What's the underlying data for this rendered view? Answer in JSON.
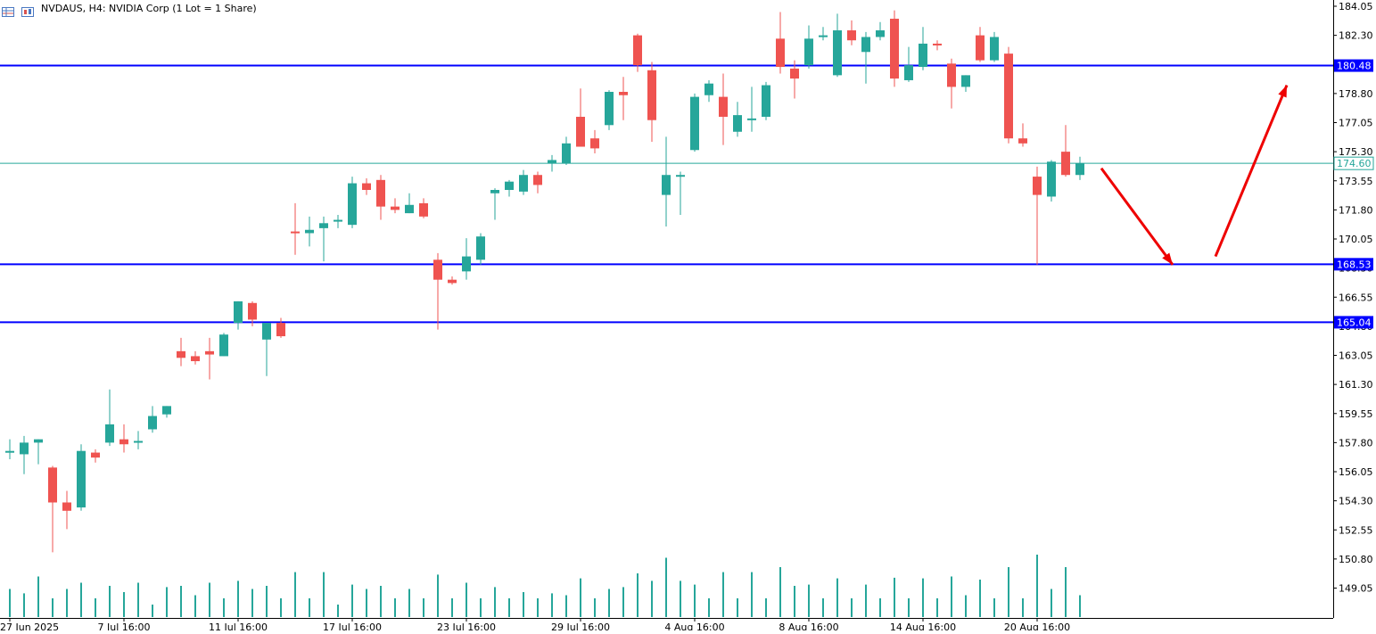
{
  "title": "NVDAUS, H4:  NVIDIA Corp (1 Lot = 1 Share)",
  "colors": {
    "bull": "#26a69a",
    "bear": "#ef5350",
    "level_line": "#0000ff",
    "price_line": "#26a69a",
    "arrow": "#ee0000",
    "axis": "#000000",
    "tag_bg": "#0000ff",
    "tag_text": "#ffffff"
  },
  "chart_data": {
    "type": "candlestick",
    "symbol": "NVDAUS",
    "timeframe": "H4",
    "ylim": [
      148.0,
      184.5
    ],
    "y_ticks": [
      "184.05",
      "182.30",
      "180.55",
      "178.80",
      "177.05",
      "175.30",
      "173.55",
      "171.80",
      "170.05",
      "168.30",
      "166.55",
      "164.80",
      "163.05",
      "161.30",
      "159.55",
      "157.80",
      "156.05",
      "154.30",
      "152.55",
      "150.80",
      "149.05"
    ],
    "x_ticks": [
      "27 Jun 2025",
      "7 Jul 16:00",
      "11 Jul 16:00",
      "17 Jul 16:00",
      "23 Jul 16:00",
      "29 Jul 16:00",
      "4 Aug 16:00",
      "8 Aug 16:00",
      "14 Aug 16:00",
      "20 Aug 16:00"
    ],
    "x_tick_bar_index": [
      0,
      8,
      16,
      24,
      32,
      40,
      48,
      56,
      64,
      72
    ],
    "candles": [
      {
        "o": 157.2,
        "h": 158.0,
        "l": 156.8,
        "c": 157.3
      },
      {
        "o": 157.1,
        "h": 158.2,
        "l": 155.9,
        "c": 157.8
      },
      {
        "o": 157.8,
        "h": 158.0,
        "l": 156.5,
        "c": 158.0
      },
      {
        "o": 156.3,
        "h": 156.4,
        "l": 151.2,
        "c": 154.2
      },
      {
        "o": 154.2,
        "h": 154.9,
        "l": 152.6,
        "c": 153.7
      },
      {
        "o": 153.9,
        "h": 157.7,
        "l": 153.7,
        "c": 157.3
      },
      {
        "o": 157.2,
        "h": 157.4,
        "l": 156.6,
        "c": 156.9
      },
      {
        "o": 157.8,
        "h": 161.0,
        "l": 157.6,
        "c": 158.9
      },
      {
        "o": 158.0,
        "h": 158.9,
        "l": 157.2,
        "c": 157.7
      },
      {
        "o": 157.8,
        "h": 158.5,
        "l": 157.4,
        "c": 157.9
      },
      {
        "o": 158.6,
        "h": 160.0,
        "l": 158.4,
        "c": 159.4
      },
      {
        "o": 159.5,
        "h": 160.0,
        "l": 159.3,
        "c": 160.0
      },
      {
        "o": 163.3,
        "h": 164.1,
        "l": 162.4,
        "c": 162.9
      },
      {
        "o": 163.0,
        "h": 163.3,
        "l": 162.5,
        "c": 162.7
      },
      {
        "o": 163.3,
        "h": 164.1,
        "l": 161.6,
        "c": 163.1
      },
      {
        "o": 163.0,
        "h": 164.4,
        "l": 163.0,
        "c": 164.3
      },
      {
        "o": 165.0,
        "h": 166.3,
        "l": 164.6,
        "c": 166.3
      },
      {
        "o": 166.2,
        "h": 166.3,
        "l": 164.8,
        "c": 165.2
      },
      {
        "o": 164.0,
        "h": 164.9,
        "l": 161.8,
        "c": 165.0
      },
      {
        "o": 165.0,
        "h": 165.3,
        "l": 164.1,
        "c": 164.2
      },
      {
        "o": 170.5,
        "h": 172.2,
        "l": 169.1,
        "c": 170.4
      },
      {
        "o": 170.4,
        "h": 171.4,
        "l": 169.6,
        "c": 170.6
      },
      {
        "o": 170.7,
        "h": 171.4,
        "l": 168.7,
        "c": 171.0
      },
      {
        "o": 171.1,
        "h": 171.5,
        "l": 170.7,
        "c": 171.2
      },
      {
        "o": 170.9,
        "h": 173.8,
        "l": 170.7,
        "c": 173.4
      },
      {
        "o": 173.4,
        "h": 173.7,
        "l": 172.7,
        "c": 173.0
      },
      {
        "o": 173.6,
        "h": 173.9,
        "l": 171.2,
        "c": 172.0
      },
      {
        "o": 172.0,
        "h": 172.5,
        "l": 171.6,
        "c": 171.8
      },
      {
        "o": 171.6,
        "h": 172.8,
        "l": 171.6,
        "c": 172.1
      },
      {
        "o": 172.2,
        "h": 172.5,
        "l": 171.3,
        "c": 171.4
      },
      {
        "o": 168.8,
        "h": 169.2,
        "l": 164.6,
        "c": 167.6
      },
      {
        "o": 167.6,
        "h": 167.8,
        "l": 167.3,
        "c": 167.4
      },
      {
        "o": 168.1,
        "h": 170.1,
        "l": 167.6,
        "c": 169.0
      },
      {
        "o": 168.8,
        "h": 170.4,
        "l": 168.5,
        "c": 170.2
      },
      {
        "o": 172.8,
        "h": 173.1,
        "l": 171.2,
        "c": 173.0
      },
      {
        "o": 173.0,
        "h": 173.6,
        "l": 172.6,
        "c": 173.5
      },
      {
        "o": 172.9,
        "h": 174.2,
        "l": 172.7,
        "c": 173.9
      },
      {
        "o": 173.9,
        "h": 174.1,
        "l": 172.8,
        "c": 173.3
      },
      {
        "o": 174.6,
        "h": 175.1,
        "l": 174.1,
        "c": 174.8
      },
      {
        "o": 174.6,
        "h": 176.2,
        "l": 174.5,
        "c": 175.8
      },
      {
        "o": 177.4,
        "h": 179.1,
        "l": 175.6,
        "c": 175.6
      },
      {
        "o": 176.1,
        "h": 176.6,
        "l": 175.2,
        "c": 175.5
      },
      {
        "o": 176.9,
        "h": 179.0,
        "l": 176.6,
        "c": 178.9
      },
      {
        "o": 178.9,
        "h": 179.8,
        "l": 177.2,
        "c": 178.7
      },
      {
        "o": 182.3,
        "h": 182.4,
        "l": 180.1,
        "c": 180.5
      },
      {
        "o": 180.2,
        "h": 180.7,
        "l": 175.9,
        "c": 177.2
      },
      {
        "o": 172.7,
        "h": 176.2,
        "l": 170.8,
        "c": 173.9
      },
      {
        "o": 173.8,
        "h": 174.1,
        "l": 171.5,
        "c": 173.9
      },
      {
        "o": 175.4,
        "h": 178.8,
        "l": 175.3,
        "c": 178.6
      },
      {
        "o": 178.7,
        "h": 179.6,
        "l": 178.3,
        "c": 179.4
      },
      {
        "o": 178.6,
        "h": 180.0,
        "l": 175.7,
        "c": 177.4
      },
      {
        "o": 176.5,
        "h": 178.3,
        "l": 176.2,
        "c": 177.5
      },
      {
        "o": 177.3,
        "h": 179.2,
        "l": 176.5,
        "c": 177.3
      },
      {
        "o": 177.4,
        "h": 179.5,
        "l": 177.2,
        "c": 179.3
      },
      {
        "o": 182.1,
        "h": 183.7,
        "l": 180.0,
        "c": 180.4
      },
      {
        "o": 180.3,
        "h": 180.8,
        "l": 178.5,
        "c": 179.7
      },
      {
        "o": 180.5,
        "h": 182.9,
        "l": 180.3,
        "c": 182.1
      },
      {
        "o": 182.2,
        "h": 182.8,
        "l": 182.0,
        "c": 182.3
      },
      {
        "o": 179.9,
        "h": 183.6,
        "l": 179.8,
        "c": 182.6
      },
      {
        "o": 182.6,
        "h": 183.2,
        "l": 181.7,
        "c": 182.0
      },
      {
        "o": 181.3,
        "h": 182.5,
        "l": 179.4,
        "c": 182.2
      },
      {
        "o": 182.2,
        "h": 183.1,
        "l": 182.0,
        "c": 182.6
      },
      {
        "o": 183.3,
        "h": 183.8,
        "l": 179.2,
        "c": 179.7
      },
      {
        "o": 179.6,
        "h": 181.6,
        "l": 179.5,
        "c": 180.5
      },
      {
        "o": 180.4,
        "h": 182.8,
        "l": 180.2,
        "c": 181.8
      },
      {
        "o": 181.8,
        "h": 182.0,
        "l": 181.4,
        "c": 181.7
      },
      {
        "o": 180.6,
        "h": 180.9,
        "l": 177.9,
        "c": 179.2
      },
      {
        "o": 179.2,
        "h": 179.9,
        "l": 178.9,
        "c": 179.9
      },
      {
        "o": 182.3,
        "h": 182.8,
        "l": 180.7,
        "c": 180.8
      },
      {
        "o": 180.8,
        "h": 182.5,
        "l": 180.7,
        "c": 182.2
      },
      {
        "o": 181.2,
        "h": 181.6,
        "l": 175.8,
        "c": 176.1
      },
      {
        "o": 176.1,
        "h": 177.0,
        "l": 175.6,
        "c": 175.8
      },
      {
        "o": 173.8,
        "h": 174.4,
        "l": 168.5,
        "c": 172.7
      },
      {
        "o": 172.6,
        "h": 174.8,
        "l": 172.3,
        "c": 174.7
      },
      {
        "o": 175.3,
        "h": 176.9,
        "l": 173.8,
        "c": 173.9
      },
      {
        "o": 173.9,
        "h": 175.0,
        "l": 173.6,
        "c": 174.6
      }
    ],
    "volumes": [
      0.45,
      0.38,
      0.65,
      0.3,
      0.45,
      0.55,
      0.3,
      0.5,
      0.4,
      0.55,
      0.2,
      0.48,
      0.5,
      0.35,
      0.55,
      0.3,
      0.58,
      0.45,
      0.5,
      0.3,
      0.72,
      0.3,
      0.72,
      0.2,
      0.52,
      0.45,
      0.5,
      0.3,
      0.45,
      0.3,
      0.68,
      0.3,
      0.55,
      0.3,
      0.48,
      0.3,
      0.4,
      0.3,
      0.38,
      0.35,
      0.62,
      0.3,
      0.45,
      0.48,
      0.7,
      0.58,
      0.95,
      0.58,
      0.52,
      0.3,
      0.72,
      0.3,
      0.72,
      0.3,
      0.8,
      0.5,
      0.52,
      0.3,
      0.62,
      0.3,
      0.52,
      0.3,
      0.63,
      0.3,
      0.62,
      0.3,
      0.65,
      0.35,
      0.6,
      0.3,
      0.8,
      0.3,
      1.0,
      0.45,
      0.8,
      0.35
    ],
    "levels": [
      {
        "value": 180.48,
        "label": "180.48"
      },
      {
        "value": 168.53,
        "label": "168.53"
      },
      {
        "value": 165.04,
        "label": "165.04"
      }
    ],
    "current_price": {
      "value": 174.6,
      "label": "174.60"
    },
    "forecast_arrows": [
      {
        "from_bar": 76.5,
        "from_price": 174.3,
        "to_bar": 81.5,
        "to_price": 168.5
      },
      {
        "from_bar": 84.5,
        "from_price": 169.0,
        "to_bar": 89.5,
        "to_price": 179.3
      }
    ]
  }
}
